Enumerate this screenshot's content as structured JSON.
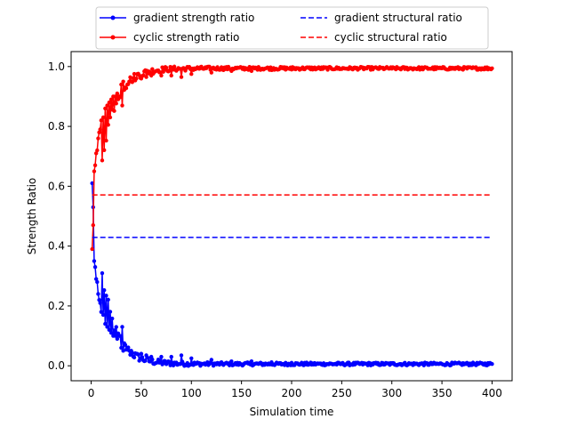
{
  "chart_data": {
    "type": "line",
    "title": "",
    "xlabel": "Simulation time",
    "ylabel": "Strength Ratio",
    "xlim": [
      -20,
      420
    ],
    "ylim": [
      -0.05,
      1.05
    ],
    "xticks": [
      0,
      50,
      100,
      150,
      200,
      250,
      300,
      350,
      400
    ],
    "yticks": [
      0.0,
      0.2,
      0.4,
      0.6,
      0.8,
      1.0
    ],
    "xtick_labels": [
      "0",
      "50",
      "100",
      "150",
      "200",
      "250",
      "300",
      "350",
      "400"
    ],
    "ytick_labels": [
      "0.0",
      "0.2",
      "0.4",
      "0.6",
      "0.8",
      "1.0"
    ],
    "grid": false,
    "legend_position": "top-center, outside",
    "legend_columns": 2,
    "colors": {
      "blue": "#0000ff",
      "red": "#ff0000"
    },
    "series": [
      {
        "name": "gradient strength ratio",
        "color": "#0000ff",
        "style": "line-dots",
        "decay": {
          "start": 0.61,
          "tau": 14,
          "floor": 0.006,
          "noise_scale": 0.012
        },
        "x": [
          1,
          2,
          3,
          4,
          5,
          6,
          7,
          8,
          9,
          10,
          12,
          14,
          16,
          18,
          20,
          22,
          24,
          26,
          28,
          30,
          31,
          32,
          34,
          36,
          38,
          40,
          45,
          50,
          55,
          60,
          70,
          80,
          90,
          100,
          120,
          140,
          160,
          180,
          200,
          250,
          300,
          350,
          400
        ],
        "y": [
          0.61,
          0.53,
          0.35,
          0.33,
          0.29,
          0.28,
          0.24,
          0.22,
          0.21,
          0.18,
          0.17,
          0.14,
          0.13,
          0.12,
          0.11,
          0.1,
          0.1,
          0.09,
          0.1,
          0.06,
          0.13,
          0.05,
          0.07,
          0.06,
          0.05,
          0.05,
          0.04,
          0.04,
          0.035,
          0.03,
          0.03,
          0.03,
          0.035,
          0.025,
          0.02,
          0.015,
          0.015,
          0.012,
          0.01,
          0.008,
          0.007,
          0.006,
          0.006
        ]
      },
      {
        "name": "cyclic strength ratio",
        "color": "#ff0000",
        "style": "line-dots",
        "decay": {
          "start": 0.39,
          "tau": 14,
          "floor": 0.994,
          "noise_scale": 0.012
        },
        "x": [
          1,
          2,
          3,
          4,
          5,
          6,
          7,
          8,
          9,
          10,
          12,
          14,
          16,
          18,
          20,
          22,
          24,
          26,
          28,
          30,
          31,
          32,
          34,
          36,
          38,
          40,
          45,
          50,
          55,
          60,
          70,
          80,
          90,
          100,
          120,
          140,
          160,
          180,
          200,
          250,
          300,
          350,
          400
        ],
        "y": [
          0.39,
          0.47,
          0.65,
          0.67,
          0.71,
          0.72,
          0.76,
          0.78,
          0.79,
          0.82,
          0.83,
          0.86,
          0.87,
          0.88,
          0.89,
          0.9,
          0.9,
          0.91,
          0.9,
          0.94,
          0.87,
          0.95,
          0.93,
          0.94,
          0.95,
          0.95,
          0.96,
          0.96,
          0.965,
          0.97,
          0.97,
          0.97,
          0.965,
          0.975,
          0.98,
          0.985,
          0.985,
          0.988,
          0.99,
          0.992,
          0.993,
          0.994,
          0.994
        ]
      },
      {
        "name": "gradient structural ratio",
        "color": "#0000ff",
        "style": "dashed",
        "x": [
          1,
          400
        ],
        "y": [
          0.429,
          0.429
        ]
      },
      {
        "name": "cyclic structural ratio",
        "color": "#ff0000",
        "style": "dashed",
        "x": [
          1,
          400
        ],
        "y": [
          0.571,
          0.571
        ]
      }
    ]
  }
}
